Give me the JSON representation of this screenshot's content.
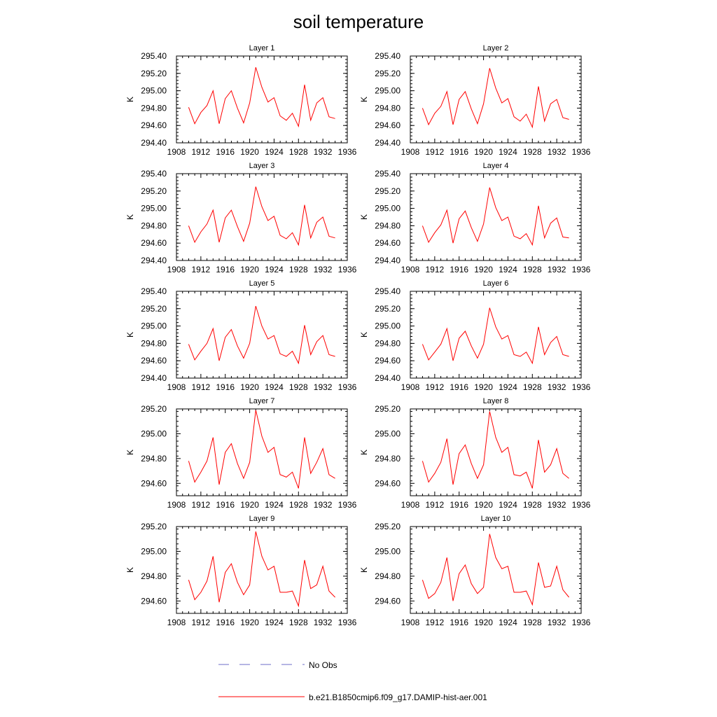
{
  "title": "soil temperature",
  "legend": [
    {
      "label": "No Obs",
      "color": "#6c6cc8",
      "style": "dashed"
    },
    {
      "label": "b.e21.B1850cmip6.f09_g17.DAMIP-hist-aer.001",
      "color": "#ff0000",
      "style": "solid"
    }
  ],
  "chart_data": [
    {
      "type": "line",
      "title": "Layer 1",
      "ylabel": "K",
      "xlim": [
        1908,
        1936
      ],
      "xticks": [
        "1908",
        "1912",
        "1916",
        "1920",
        "1924",
        "1928",
        "1932",
        "1936"
      ],
      "ylim": [
        294.4,
        295.4
      ],
      "yticks": [
        "294.40",
        "294.60",
        "294.80",
        "295.00",
        "295.20",
        "295.40"
      ],
      "series": [
        {
          "color": "#ff0000",
          "x": [
            1910,
            1911,
            1912,
            1913,
            1914,
            1915,
            1916,
            1917,
            1918,
            1919,
            1920,
            1921,
            1922,
            1923,
            1924,
            1925,
            1926,
            1927,
            1928,
            1929,
            1930,
            1931,
            1932,
            1933,
            1934
          ],
          "y": [
            294.81,
            294.62,
            294.75,
            294.83,
            295.0,
            294.62,
            294.91,
            295.0,
            294.8,
            294.63,
            294.86,
            295.27,
            295.04,
            294.87,
            294.92,
            294.71,
            294.66,
            294.74,
            294.59,
            295.07,
            294.66,
            294.86,
            294.92,
            294.7,
            294.68
          ]
        }
      ]
    },
    {
      "type": "line",
      "title": "Layer 2",
      "ylabel": "K",
      "xlim": [
        1908,
        1936
      ],
      "xticks": [
        "1908",
        "1912",
        "1916",
        "1920",
        "1924",
        "1928",
        "1932",
        "1936"
      ],
      "ylim": [
        294.4,
        295.4
      ],
      "yticks": [
        "294.40",
        "294.60",
        "294.80",
        "295.00",
        "295.20",
        "295.40"
      ],
      "series": [
        {
          "color": "#ff0000",
          "x": [
            1910,
            1911,
            1912,
            1913,
            1914,
            1915,
            1916,
            1917,
            1918,
            1919,
            1920,
            1921,
            1922,
            1923,
            1924,
            1925,
            1926,
            1927,
            1928,
            1929,
            1930,
            1931,
            1932,
            1933,
            1934
          ],
          "y": [
            294.8,
            294.61,
            294.74,
            294.82,
            294.99,
            294.61,
            294.9,
            294.99,
            294.79,
            294.62,
            294.85,
            295.26,
            295.03,
            294.86,
            294.91,
            294.7,
            294.65,
            294.73,
            294.58,
            295.05,
            294.65,
            294.85,
            294.9,
            294.69,
            294.67
          ]
        }
      ]
    },
    {
      "type": "line",
      "title": "Layer 3",
      "ylabel": "K",
      "xlim": [
        1908,
        1936
      ],
      "xticks": [
        "1908",
        "1912",
        "1916",
        "1920",
        "1924",
        "1928",
        "1932",
        "1936"
      ],
      "ylim": [
        294.4,
        295.4
      ],
      "yticks": [
        "294.40",
        "294.60",
        "294.80",
        "295.00",
        "295.20",
        "295.40"
      ],
      "series": [
        {
          "color": "#ff0000",
          "x": [
            1910,
            1911,
            1912,
            1913,
            1914,
            1915,
            1916,
            1917,
            1918,
            1919,
            1920,
            1921,
            1922,
            1923,
            1924,
            1925,
            1926,
            1927,
            1928,
            1929,
            1930,
            1931,
            1932,
            1933,
            1934
          ],
          "y": [
            294.8,
            294.61,
            294.73,
            294.82,
            294.98,
            294.61,
            294.89,
            294.98,
            294.79,
            294.62,
            294.83,
            295.25,
            295.02,
            294.86,
            294.91,
            294.69,
            294.65,
            294.72,
            294.58,
            295.04,
            294.66,
            294.84,
            294.9,
            294.68,
            294.66
          ]
        }
      ]
    },
    {
      "type": "line",
      "title": "Layer 4",
      "ylabel": "K",
      "xlim": [
        1908,
        1936
      ],
      "xticks": [
        "1908",
        "1912",
        "1916",
        "1920",
        "1924",
        "1928",
        "1932",
        "1936"
      ],
      "ylim": [
        294.4,
        295.4
      ],
      "yticks": [
        "294.40",
        "294.60",
        "294.80",
        "295.00",
        "295.20",
        "295.40"
      ],
      "series": [
        {
          "color": "#ff0000",
          "x": [
            1910,
            1911,
            1912,
            1913,
            1914,
            1915,
            1916,
            1917,
            1918,
            1919,
            1920,
            1921,
            1922,
            1923,
            1924,
            1925,
            1926,
            1927,
            1928,
            1929,
            1930,
            1931,
            1932,
            1933,
            1934
          ],
          "y": [
            294.8,
            294.61,
            294.72,
            294.81,
            294.98,
            294.6,
            294.88,
            294.97,
            294.78,
            294.62,
            294.82,
            295.24,
            295.01,
            294.86,
            294.9,
            294.68,
            294.65,
            294.71,
            294.58,
            295.03,
            294.66,
            294.83,
            294.89,
            294.67,
            294.66
          ]
        }
      ]
    },
    {
      "type": "line",
      "title": "Layer 5",
      "ylabel": "K",
      "xlim": [
        1908,
        1936
      ],
      "xticks": [
        "1908",
        "1912",
        "1916",
        "1920",
        "1924",
        "1928",
        "1932",
        "1936"
      ],
      "ylim": [
        294.4,
        295.4
      ],
      "yticks": [
        "294.40",
        "294.60",
        "294.80",
        "295.00",
        "295.20",
        "295.40"
      ],
      "series": [
        {
          "color": "#ff0000",
          "x": [
            1910,
            1911,
            1912,
            1913,
            1914,
            1915,
            1916,
            1917,
            1918,
            1919,
            1920,
            1921,
            1922,
            1923,
            1924,
            1925,
            1926,
            1927,
            1928,
            1929,
            1930,
            1931,
            1932,
            1933,
            1934
          ],
          "y": [
            294.79,
            294.61,
            294.71,
            294.8,
            294.97,
            294.6,
            294.87,
            294.96,
            294.77,
            294.63,
            294.8,
            295.23,
            295.0,
            294.85,
            294.89,
            294.68,
            294.65,
            294.71,
            294.57,
            295.01,
            294.67,
            294.82,
            294.89,
            294.67,
            294.65
          ]
        }
      ]
    },
    {
      "type": "line",
      "title": "Layer 6",
      "ylabel": "K",
      "xlim": [
        1908,
        1936
      ],
      "xticks": [
        "1908",
        "1912",
        "1916",
        "1920",
        "1924",
        "1928",
        "1932",
        "1936"
      ],
      "ylim": [
        294.4,
        295.4
      ],
      "yticks": [
        "294.40",
        "294.60",
        "294.80",
        "295.00",
        "295.20",
        "295.40"
      ],
      "series": [
        {
          "color": "#ff0000",
          "x": [
            1910,
            1911,
            1912,
            1913,
            1914,
            1915,
            1916,
            1917,
            1918,
            1919,
            1920,
            1921,
            1922,
            1923,
            1924,
            1925,
            1926,
            1927,
            1928,
            1929,
            1930,
            1931,
            1932,
            1933,
            1934
          ],
          "y": [
            294.79,
            294.61,
            294.7,
            294.79,
            294.97,
            294.6,
            294.86,
            294.94,
            294.77,
            294.63,
            294.79,
            295.21,
            294.99,
            294.85,
            294.89,
            294.67,
            294.65,
            294.7,
            294.57,
            294.99,
            294.67,
            294.81,
            294.88,
            294.67,
            294.65
          ]
        }
      ]
    },
    {
      "type": "line",
      "title": "Layer 7",
      "ylabel": "K",
      "xlim": [
        1908,
        1936
      ],
      "xticks": [
        "1908",
        "1912",
        "1916",
        "1920",
        "1924",
        "1928",
        "1932",
        "1936"
      ],
      "ylim": [
        294.5,
        295.2
      ],
      "yticks": [
        "294.60",
        "294.80",
        "295.00",
        "295.20"
      ],
      "series": [
        {
          "color": "#ff0000",
          "x": [
            1910,
            1911,
            1912,
            1913,
            1914,
            1915,
            1916,
            1917,
            1918,
            1919,
            1920,
            1921,
            1922,
            1923,
            1924,
            1925,
            1926,
            1927,
            1928,
            1929,
            1930,
            1931,
            1932,
            1933,
            1934
          ],
          "y": [
            294.78,
            294.61,
            294.69,
            294.78,
            294.97,
            294.59,
            294.85,
            294.92,
            294.76,
            294.64,
            294.77,
            295.19,
            294.98,
            294.85,
            294.89,
            294.67,
            294.65,
            294.69,
            294.56,
            294.97,
            294.68,
            294.77,
            294.88,
            294.67,
            294.64
          ]
        }
      ]
    },
    {
      "type": "line",
      "title": "Layer 8",
      "ylabel": "K",
      "xlim": [
        1908,
        1936
      ],
      "xticks": [
        "1908",
        "1912",
        "1916",
        "1920",
        "1924",
        "1928",
        "1932",
        "1936"
      ],
      "ylim": [
        294.5,
        295.2
      ],
      "yticks": [
        "294.60",
        "294.80",
        "295.00",
        "295.20"
      ],
      "series": [
        {
          "color": "#ff0000",
          "x": [
            1910,
            1911,
            1912,
            1913,
            1914,
            1915,
            1916,
            1917,
            1918,
            1919,
            1920,
            1921,
            1922,
            1923,
            1924,
            1925,
            1926,
            1927,
            1928,
            1929,
            1930,
            1931,
            1932,
            1933,
            1934
          ],
          "y": [
            294.78,
            294.61,
            294.68,
            294.77,
            294.96,
            294.59,
            294.84,
            294.91,
            294.76,
            294.64,
            294.75,
            295.18,
            294.97,
            294.85,
            294.89,
            294.67,
            294.66,
            294.69,
            294.56,
            294.95,
            294.69,
            294.75,
            294.88,
            294.68,
            294.64
          ]
        }
      ]
    },
    {
      "type": "line",
      "title": "Layer 9",
      "ylabel": "K",
      "xlim": [
        1908,
        1936
      ],
      "xticks": [
        "1908",
        "1912",
        "1916",
        "1920",
        "1924",
        "1928",
        "1932",
        "1936"
      ],
      "ylim": [
        294.5,
        295.2
      ],
      "yticks": [
        "294.60",
        "294.80",
        "295.00",
        "295.20"
      ],
      "series": [
        {
          "color": "#ff0000",
          "x": [
            1910,
            1911,
            1912,
            1913,
            1914,
            1915,
            1916,
            1917,
            1918,
            1919,
            1920,
            1921,
            1922,
            1923,
            1924,
            1925,
            1926,
            1927,
            1928,
            1929,
            1930,
            1931,
            1932,
            1933,
            1934
          ],
          "y": [
            294.77,
            294.61,
            294.67,
            294.76,
            294.96,
            294.59,
            294.83,
            294.9,
            294.75,
            294.65,
            294.73,
            295.16,
            294.96,
            294.85,
            294.88,
            294.67,
            294.67,
            294.68,
            294.56,
            294.93,
            294.7,
            294.73,
            294.88,
            294.68,
            294.63
          ]
        }
      ]
    },
    {
      "type": "line",
      "title": "Layer 10",
      "ylabel": "K",
      "xlim": [
        1908,
        1936
      ],
      "xticks": [
        "1908",
        "1912",
        "1916",
        "1920",
        "1924",
        "1928",
        "1932",
        "1936"
      ],
      "ylim": [
        294.5,
        295.2
      ],
      "yticks": [
        "294.60",
        "294.80",
        "295.00",
        "295.20"
      ],
      "series": [
        {
          "color": "#ff0000",
          "x": [
            1910,
            1911,
            1912,
            1913,
            1914,
            1915,
            1916,
            1917,
            1918,
            1919,
            1920,
            1921,
            1922,
            1923,
            1924,
            1925,
            1926,
            1927,
            1928,
            1929,
            1930,
            1931,
            1932,
            1933,
            1934
          ],
          "y": [
            294.77,
            294.62,
            294.66,
            294.75,
            294.95,
            294.6,
            294.82,
            294.89,
            294.74,
            294.66,
            294.71,
            295.14,
            294.95,
            294.86,
            294.88,
            294.67,
            294.67,
            294.68,
            294.57,
            294.91,
            294.71,
            294.72,
            294.88,
            294.69,
            294.63
          ]
        }
      ]
    }
  ]
}
